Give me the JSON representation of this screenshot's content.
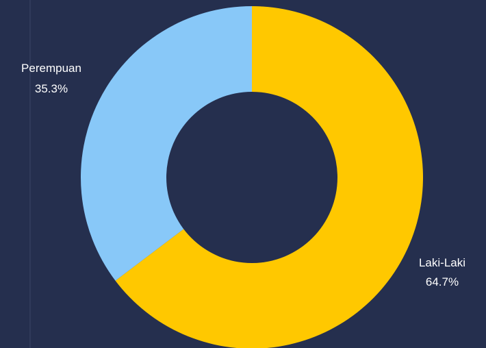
{
  "chart_data": {
    "type": "pie",
    "title": "",
    "style": "donut",
    "slices": [
      {
        "label": "Laki-Laki",
        "value": 64.7,
        "value_label": "64.7%",
        "color": "#ffc800"
      },
      {
        "label": "Perempuan",
        "value": 35.3,
        "value_label": "35.3%",
        "color": "#88c8f8"
      }
    ],
    "background_color": "#252f4e",
    "hole_color": "#252f4e",
    "label_color": "#ffffff",
    "start_angle": "12 o'clock",
    "direction": "clockwise",
    "legend": "none"
  }
}
